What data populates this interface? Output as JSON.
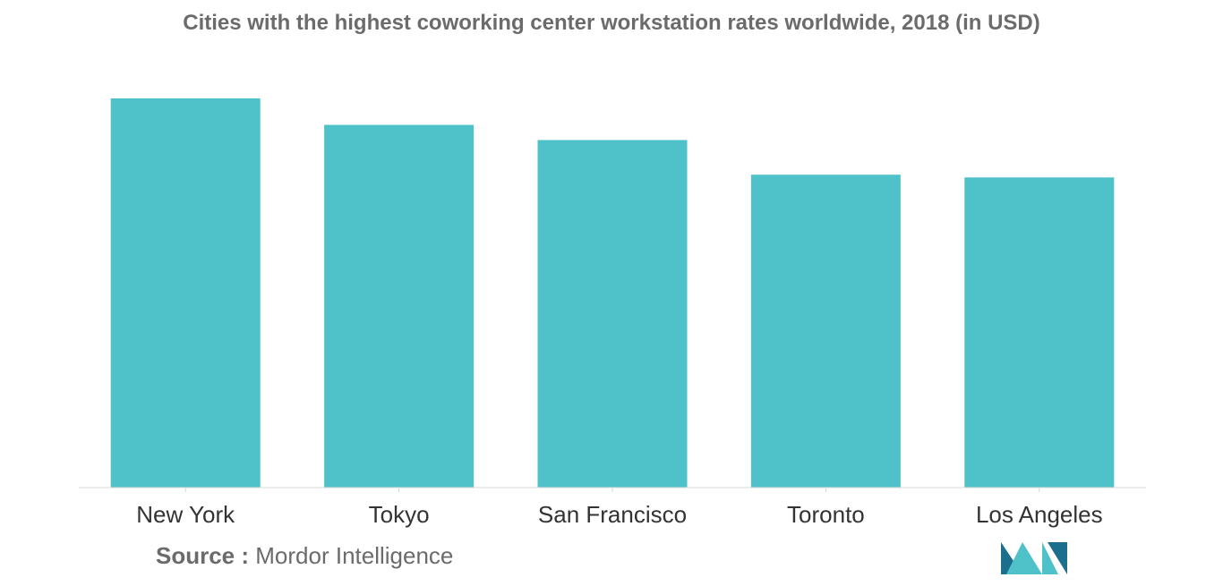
{
  "chart_data": {
    "type": "bar",
    "title": "Cities with the highest coworking center workstation rates worldwide, 2018 (in USD)",
    "categories": [
      "New York",
      "Tokyo",
      "San Francisco",
      "Toronto",
      "Los Angeles"
    ],
    "values": [
      1000,
      932,
      893,
      804,
      797
    ],
    "ylim": [
      0,
      1000
    ],
    "xlabel": "",
    "ylabel": "",
    "grid": false,
    "legend": "none"
  },
  "colors": {
    "bar": "#4fc2c9",
    "axis": "#d9d9d9",
    "logo_dark": "#1b6f8c",
    "logo_light": "#4fc2c9"
  },
  "source": {
    "key": "Source :",
    "value": "Mordor Intelligence"
  },
  "logo": {
    "icon": "mordor-intelligence-logo-icon"
  }
}
